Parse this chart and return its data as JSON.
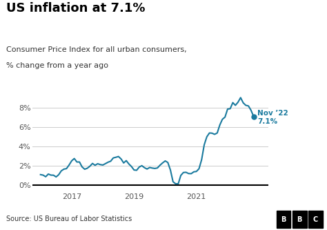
{
  "title": "US inflation at 7.1%",
  "subtitle_line1": "Consumer Price Index for all urban consumers,",
  "subtitle_line2": "% change from a year ago",
  "source": "Source: US Bureau of Labor Statistics",
  "annotation_label1": "Nov ’22",
  "annotation_label2": "7.1%",
  "line_color": "#1a7a9e",
  "dot_color": "#1a7a9e",
  "background_color": "#ffffff",
  "footer_bg": "#c8c8c8",
  "yticks": [
    0,
    2,
    4,
    6,
    8
  ],
  "ylim": [
    -0.5,
    10.0
  ],
  "xlim": [
    2015.75,
    2023.3
  ],
  "xticks": [
    2017,
    2019,
    2021
  ],
  "data": [
    [
      2016.0,
      1.07
    ],
    [
      2016.083,
      1.02
    ],
    [
      2016.167,
      0.85
    ],
    [
      2016.25,
      1.13
    ],
    [
      2016.333,
      1.02
    ],
    [
      2016.417,
      1.01
    ],
    [
      2016.5,
      0.83
    ],
    [
      2016.583,
      1.06
    ],
    [
      2016.667,
      1.46
    ],
    [
      2016.75,
      1.64
    ],
    [
      2016.833,
      1.69
    ],
    [
      2016.917,
      2.07
    ],
    [
      2017.0,
      2.5
    ],
    [
      2017.083,
      2.74
    ],
    [
      2017.167,
      2.38
    ],
    [
      2017.25,
      2.38
    ],
    [
      2017.333,
      1.87
    ],
    [
      2017.417,
      1.63
    ],
    [
      2017.5,
      1.73
    ],
    [
      2017.583,
      1.94
    ],
    [
      2017.667,
      2.23
    ],
    [
      2017.75,
      2.04
    ],
    [
      2017.833,
      2.2
    ],
    [
      2017.917,
      2.11
    ],
    [
      2018.0,
      2.07
    ],
    [
      2018.083,
      2.21
    ],
    [
      2018.167,
      2.36
    ],
    [
      2018.25,
      2.46
    ],
    [
      2018.333,
      2.8
    ],
    [
      2018.417,
      2.87
    ],
    [
      2018.5,
      2.95
    ],
    [
      2018.583,
      2.7
    ],
    [
      2018.667,
      2.28
    ],
    [
      2018.75,
      2.52
    ],
    [
      2018.833,
      2.18
    ],
    [
      2018.917,
      1.91
    ],
    [
      2019.0,
      1.55
    ],
    [
      2019.083,
      1.52
    ],
    [
      2019.167,
      1.86
    ],
    [
      2019.25,
      2.0
    ],
    [
      2019.333,
      1.79
    ],
    [
      2019.417,
      1.65
    ],
    [
      2019.5,
      1.81
    ],
    [
      2019.583,
      1.75
    ],
    [
      2019.667,
      1.71
    ],
    [
      2019.75,
      1.76
    ],
    [
      2019.833,
      2.05
    ],
    [
      2019.917,
      2.29
    ],
    [
      2020.0,
      2.49
    ],
    [
      2020.083,
      2.33
    ],
    [
      2020.167,
      1.54
    ],
    [
      2020.25,
      0.33
    ],
    [
      2020.333,
      0.12
    ],
    [
      2020.417,
      0.12
    ],
    [
      2020.5,
      0.99
    ],
    [
      2020.583,
      1.29
    ],
    [
      2020.667,
      1.31
    ],
    [
      2020.75,
      1.18
    ],
    [
      2020.833,
      1.17
    ],
    [
      2020.917,
      1.36
    ],
    [
      2021.0,
      1.4
    ],
    [
      2021.083,
      1.68
    ],
    [
      2021.167,
      2.62
    ],
    [
      2021.25,
      4.16
    ],
    [
      2021.333,
      4.99
    ],
    [
      2021.417,
      5.39
    ],
    [
      2021.5,
      5.37
    ],
    [
      2021.583,
      5.25
    ],
    [
      2021.667,
      5.39
    ],
    [
      2021.75,
      6.22
    ],
    [
      2021.833,
      6.81
    ],
    [
      2021.917,
      7.04
    ],
    [
      2022.0,
      7.87
    ],
    [
      2022.083,
      7.91
    ],
    [
      2022.167,
      8.54
    ],
    [
      2022.25,
      8.26
    ],
    [
      2022.333,
      8.58
    ],
    [
      2022.417,
      9.06
    ],
    [
      2022.5,
      8.52
    ],
    [
      2022.583,
      8.26
    ],
    [
      2022.667,
      8.2
    ],
    [
      2022.75,
      7.75
    ],
    [
      2022.833,
      7.11
    ]
  ]
}
